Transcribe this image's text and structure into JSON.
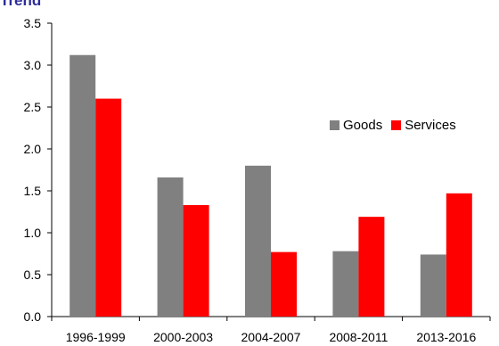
{
  "title_partial": "Trend",
  "chart_data": {
    "type": "bar",
    "categories": [
      "1996-1999",
      "2000-2003",
      "2004-2007",
      "2008-2011",
      "2013-2016"
    ],
    "series": [
      {
        "name": "Goods",
        "color": "#808080",
        "values": [
          3.12,
          1.66,
          1.8,
          0.78,
          0.74
        ]
      },
      {
        "name": "Services",
        "color": "#ff0000",
        "values": [
          2.6,
          1.33,
          0.77,
          1.19,
          1.47
        ]
      }
    ],
    "ylim": [
      0,
      3.5
    ],
    "yticks": [
      "0.0",
      "0.5",
      "1.0",
      "1.5",
      "2.0",
      "2.5",
      "3.0",
      "3.5"
    ],
    "grid": false,
    "legend_position": "right-middle"
  }
}
